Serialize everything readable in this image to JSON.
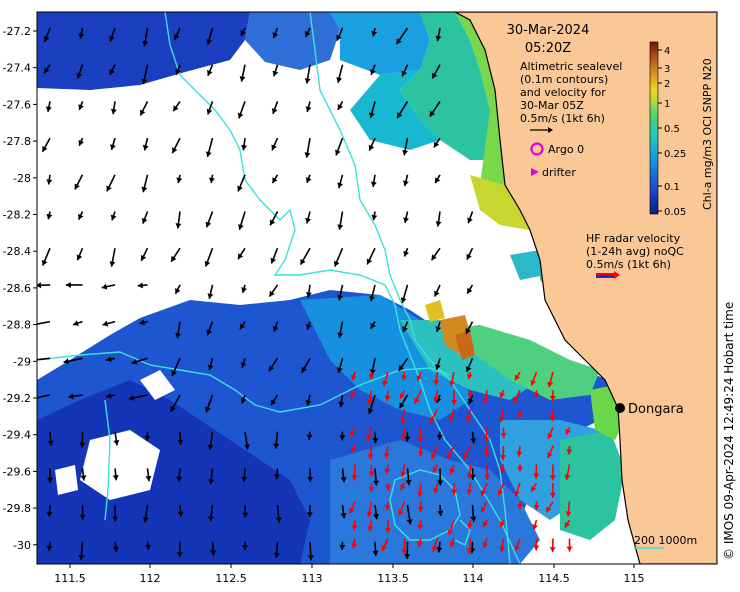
{
  "header": {
    "date": "30-Mar-2024",
    "time": "05:20Z"
  },
  "altimetry_note": [
    "Altimetric sealevel",
    "(0.1m contours)",
    "and velocity for",
    "30-Mar 05Z",
    "0.5m/s (1kt 6h)"
  ],
  "legend": {
    "argo": "Argo 0",
    "drifter": "drifter",
    "hf_radar": [
      "HF radar velocity",
      "(1-24h avg) noQC",
      "0.5m/s (1kt 6h)"
    ]
  },
  "colorbar": {
    "title": "Chl-a mg/m3 OCI SNPP N20",
    "ticks": [
      "4",
      "3",
      "2",
      "1",
      "0.5",
      "0.25",
      "0.1",
      "0.05"
    ]
  },
  "axes": {
    "lon_ticks": [
      "111.5",
      "112",
      "112.5",
      "113",
      "113.5",
      "114",
      "114.5",
      "115"
    ],
    "lat_ticks": [
      "-27.2",
      "-27.4",
      "-27.6",
      "-27.8",
      "-28",
      "-28.2",
      "-28.4",
      "-28.6",
      "-28.8",
      "-29",
      "-29.2",
      "-29.4",
      "-29.6",
      "-29.8",
      "-30"
    ]
  },
  "place": {
    "name": "Dongara"
  },
  "bathymetry": {
    "label": "200  1000m"
  },
  "credit": "© IMOS 09-Apr-2024 12:49:24 Hobart time",
  "colors": {
    "land": "#f9c896",
    "isobath": "#3be0e0",
    "hf_arrow": "#ff0000",
    "argo": "#dd00dd",
    "deep_blue": "#1030b0"
  }
}
